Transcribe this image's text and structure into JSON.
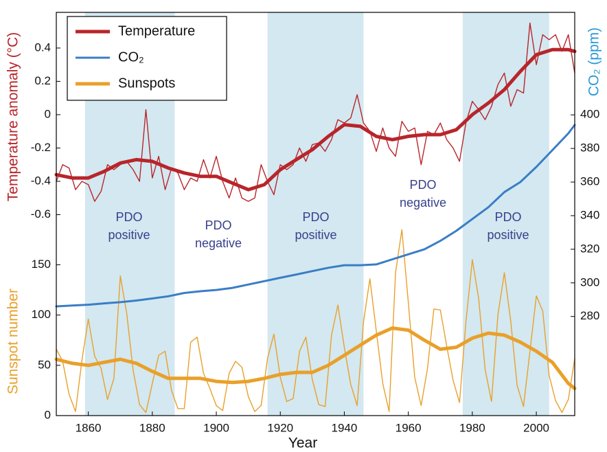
{
  "chart_data": {
    "type": "line",
    "xlabel": "Year",
    "ylabel": "Temperature anomaly (°C)",
    "y2label": "CO₂ (ppm)",
    "y3label": "Sunspot number",
    "xlim": [
      1850,
      2012
    ],
    "xticks": [
      1860,
      1880,
      1900,
      1920,
      1940,
      1960,
      1980,
      2000
    ],
    "ylim": [
      -1.806,
      0.614
    ],
    "yticks": [
      -0.6,
      -0.4,
      -0.2,
      0,
      0.2,
      0.4
    ],
    "y2lim": [
      221,
      461
    ],
    "y2ticks": [
      280,
      300,
      320,
      340,
      360,
      380,
      400
    ],
    "y3lim": [
      0,
      401
    ],
    "y3ticks": [
      0,
      50,
      100,
      150
    ],
    "legend": "upper left",
    "shade_color": "#d3e8f0",
    "shaded_ranges": [
      [
        1859,
        1887
      ],
      [
        1916,
        1946
      ],
      [
        1977,
        2004
      ]
    ],
    "annotations": [
      {
        "lines": [
          "PDO",
          "positive"
        ]
      },
      {
        "lines": [
          "PDO",
          "negative"
        ]
      },
      {
        "lines": [
          "PDO",
          "positive"
        ]
      },
      {
        "lines": [
          "PDO",
          "negative"
        ]
      },
      {
        "lines": [
          "PDO",
          "positive"
        ]
      }
    ],
    "x": [
      1850,
      1855,
      1860,
      1865,
      1870,
      1875,
      1880,
      1885,
      1890,
      1895,
      1900,
      1905,
      1910,
      1915,
      1920,
      1925,
      1930,
      1935,
      1940,
      1945,
      1950,
      1955,
      1960,
      1965,
      1970,
      1975,
      1980,
      1985,
      1990,
      1995,
      2000,
      2005,
      2010,
      2012
    ],
    "x_annual": [
      1850,
      1852,
      1854,
      1856,
      1858,
      1860,
      1862,
      1864,
      1866,
      1868,
      1870,
      1872,
      1874,
      1876,
      1878,
      1880,
      1882,
      1884,
      1886,
      1888,
      1890,
      1892,
      1894,
      1896,
      1898,
      1900,
      1902,
      1904,
      1906,
      1908,
      1910,
      1912,
      1914,
      1916,
      1918,
      1920,
      1922,
      1924,
      1926,
      1928,
      1930,
      1932,
      1934,
      1936,
      1938,
      1940,
      1942,
      1944,
      1946,
      1948,
      1950,
      1952,
      1954,
      1956,
      1958,
      1960,
      1962,
      1964,
      1966,
      1968,
      1970,
      1972,
      1974,
      1976,
      1978,
      1980,
      1982,
      1984,
      1986,
      1988,
      1990,
      1992,
      1994,
      1996,
      1998,
      2000,
      2002,
      2004,
      2006,
      2008,
      2010,
      2012
    ],
    "series": [
      {
        "name": "Temperature",
        "color": "#b8252a",
        "axis": "y",
        "values": [
          -0.36,
          -0.38,
          -0.38,
          -0.34,
          -0.29,
          -0.27,
          -0.28,
          -0.32,
          -0.35,
          -0.37,
          -0.37,
          -0.41,
          -0.45,
          -0.42,
          -0.33,
          -0.27,
          -0.21,
          -0.13,
          -0.06,
          -0.07,
          -0.13,
          -0.15,
          -0.13,
          -0.12,
          -0.12,
          -0.09,
          0.0,
          0.07,
          0.15,
          0.26,
          0.36,
          0.39,
          0.39,
          0.38
        ],
        "annual_values": [
          -0.4,
          -0.3,
          -0.32,
          -0.45,
          -0.4,
          -0.42,
          -0.52,
          -0.46,
          -0.3,
          -0.33,
          -0.3,
          -0.28,
          -0.33,
          -0.4,
          0.03,
          -0.38,
          -0.25,
          -0.45,
          -0.32,
          -0.35,
          -0.45,
          -0.38,
          -0.4,
          -0.27,
          -0.38,
          -0.25,
          -0.4,
          -0.5,
          -0.38,
          -0.5,
          -0.52,
          -0.5,
          -0.3,
          -0.4,
          -0.48,
          -0.3,
          -0.33,
          -0.3,
          -0.2,
          -0.28,
          -0.18,
          -0.17,
          -0.22,
          -0.15,
          -0.03,
          -0.05,
          -0.02,
          0.12,
          -0.05,
          -0.1,
          -0.22,
          -0.08,
          -0.2,
          -0.25,
          -0.04,
          -0.1,
          -0.08,
          -0.3,
          -0.1,
          -0.12,
          -0.05,
          -0.15,
          -0.2,
          -0.28,
          -0.05,
          0.08,
          0.03,
          -0.03,
          0.05,
          0.18,
          0.25,
          0.05,
          0.15,
          0.13,
          0.55,
          0.3,
          0.48,
          0.45,
          0.48,
          0.38,
          0.48,
          0.25
        ]
      },
      {
        "name": "CO₂",
        "color": "#3a7dc6",
        "axis": "y2",
        "values": [
          286,
          286.5,
          287,
          287.8,
          288.5,
          289.5,
          290.7,
          292,
          294,
          295,
          295.8,
          297,
          299,
          301,
          303,
          305,
          307,
          309,
          310.5,
          310.5,
          311,
          314,
          317,
          320,
          325,
          331,
          338,
          345,
          354,
          360,
          369,
          379,
          389,
          394
        ]
      },
      {
        "name": "Sunspots",
        "color": "#e9a02a",
        "axis": "y3",
        "values": [
          56,
          52,
          50,
          53,
          56,
          52,
          44,
          37,
          37,
          37,
          34,
          33,
          34,
          37,
          41,
          43,
          43,
          50,
          60,
          70,
          80,
          87,
          85,
          75,
          66,
          68,
          77,
          82,
          80,
          73,
          64,
          53,
          32,
          27
        ],
        "annual_values": [
          66,
          54,
          21,
          4,
          55,
          96,
          59,
          47,
          16,
          37,
          139,
          102,
          45,
          11,
          3,
          32,
          60,
          64,
          25,
          7,
          7,
          73,
          78,
          42,
          27,
          10,
          5,
          42,
          54,
          48,
          19,
          4,
          10,
          57,
          81,
          38,
          14,
          17,
          64,
          78,
          36,
          11,
          9,
          80,
          110,
          68,
          31,
          10,
          93,
          136,
          84,
          32,
          4,
          142,
          185,
          112,
          38,
          10,
          47,
          106,
          105,
          69,
          35,
          13,
          93,
          155,
          116,
          46,
          14,
          100,
          142,
          94,
          30,
          9,
          64,
          119,
          104,
          40,
          15,
          3,
          16,
          57
        ]
      }
    ]
  }
}
